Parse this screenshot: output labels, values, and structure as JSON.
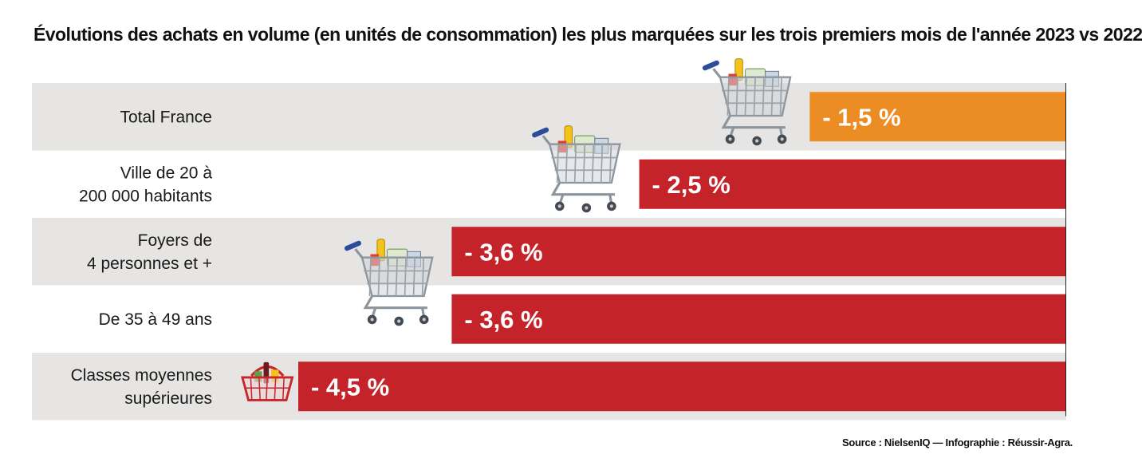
{
  "chart_data": {
    "type": "bar",
    "orientation": "horizontal",
    "title": "Évolutions des achats en volume (en unités de consommation) les plus marquées sur les trois premiers mois de l'année 2023 vs 2022",
    "categories": [
      [
        "Total France"
      ],
      [
        "Ville de 20 à",
        "200 000 habitants"
      ],
      [
        "Foyers de",
        "4 personnes et +"
      ],
      [
        "De 35 à 49 ans"
      ],
      [
        "Classes moyennes",
        "supérieures"
      ]
    ],
    "values": [
      -1.5,
      -2.5,
      -3.6,
      -3.6,
      -4.5
    ],
    "value_labels": [
      "- 1,5 %",
      "- 2,5 %",
      "- 3,6 %",
      "- 3,6 %",
      "- 4,5 %"
    ],
    "bar_colors": [
      "#ec8d23",
      "#c4232a",
      "#c4232a",
      "#c4232a",
      "#c4232a"
    ],
    "row_background": [
      "#e6e5e3",
      "#ffffff"
    ],
    "icons": [
      "shopping-cart-icon",
      "shopping-cart-icon",
      "shopping-cart-icon",
      "none",
      "shopping-basket-icon"
    ],
    "xlim": [
      -5.35,
      0
    ]
  },
  "source": "Source : NielsenIQ — Infographie : Réussir-Agra."
}
